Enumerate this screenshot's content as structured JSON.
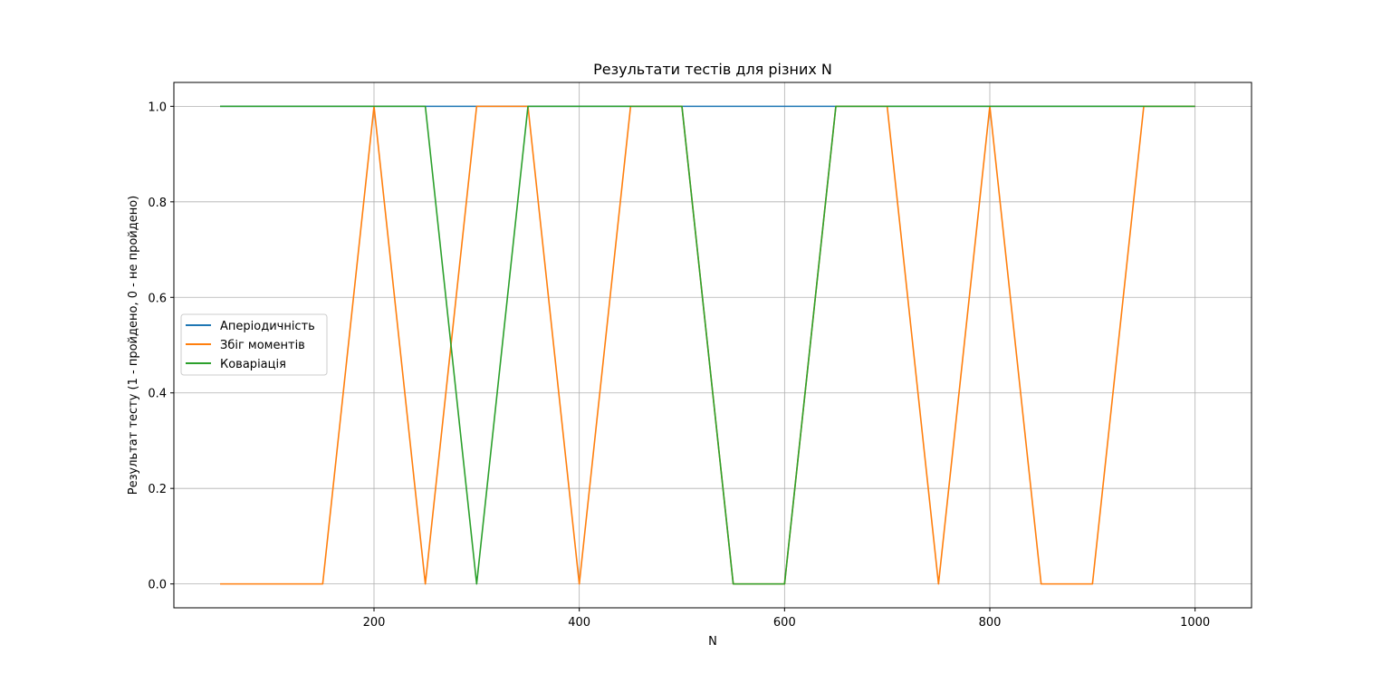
{
  "chart_data": {
    "type": "line",
    "title": "Результати тестів для різних N",
    "xlabel": "N",
    "ylabel": "Результат тесту (1 - пройдено, 0 - не пройдено)",
    "xlim": [
      5,
      1055
    ],
    "ylim": [
      -0.05,
      1.05
    ],
    "xticks": [
      200,
      400,
      600,
      800,
      1000
    ],
    "yticks": [
      0.0,
      0.2,
      0.4,
      0.6,
      0.8,
      1.0
    ],
    "xtick_labels": [
      "200",
      "400",
      "600",
      "800",
      "1000"
    ],
    "ytick_labels": [
      "0.0",
      "0.2",
      "0.4",
      "0.6",
      "0.8",
      "1.0"
    ],
    "grid": true,
    "legend_position": "center-left",
    "x": [
      50,
      100,
      150,
      200,
      250,
      300,
      350,
      400,
      450,
      500,
      550,
      600,
      650,
      700,
      750,
      800,
      850,
      900,
      950,
      1000
    ],
    "series": [
      {
        "name": "Аперіодичність",
        "color": "#1f77b4",
        "values": [
          1,
          1,
          1,
          1,
          1,
          1,
          1,
          1,
          1,
          1,
          1,
          1,
          1,
          1,
          1,
          1,
          1,
          1,
          1,
          1
        ]
      },
      {
        "name": "Збіг моментів",
        "color": "#ff7f0e",
        "values": [
          0,
          0,
          0,
          1,
          0,
          1,
          1,
          0,
          1,
          1,
          0,
          0,
          1,
          1,
          0,
          1,
          0,
          0,
          1,
          1
        ]
      },
      {
        "name": "Коваріація",
        "color": "#2ca02c",
        "values": [
          1,
          1,
          1,
          1,
          1,
          0,
          1,
          1,
          1,
          1,
          0,
          0,
          1,
          1,
          1,
          1,
          1,
          1,
          1,
          1
        ]
      }
    ]
  }
}
